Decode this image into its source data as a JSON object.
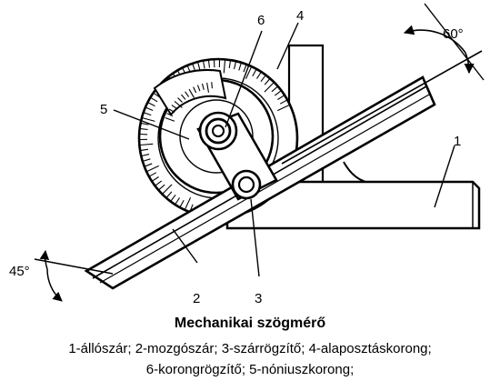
{
  "diagram": {
    "title": "Mechanikai szögmérő",
    "legend_line1": "1-állószár; 2-mozgószár; 3-szárrögzítő; 4-alaposztáskorong;",
    "legend_line2": "6-korongrögzítő;  5-nóniuszkorong;",
    "part_labels": {
      "p1": "1",
      "p2": "2",
      "p3": "3",
      "p4": "4",
      "p5": "5",
      "p6": "6"
    },
    "angle_labels": {
      "a60": "60°",
      "a45": "45°"
    }
  }
}
